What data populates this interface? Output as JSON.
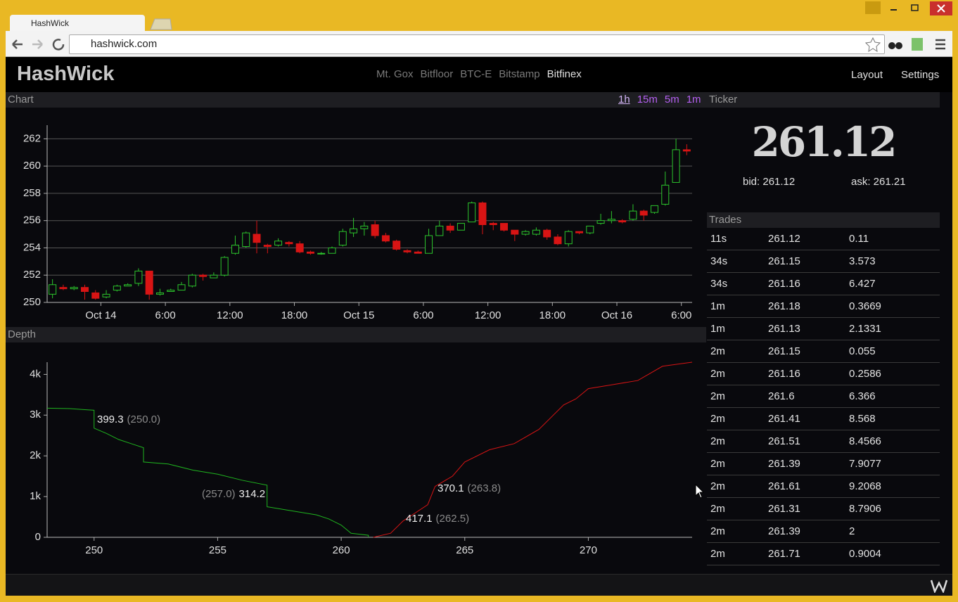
{
  "browser": {
    "tab_title": "HashWick",
    "url": "hashwick.com"
  },
  "header": {
    "logo": "HashWick",
    "exchanges": [
      "Mt. Gox",
      "Bitfloor",
      "BTC-E",
      "Bitstamp",
      "Bitfinex"
    ],
    "nav": [
      "Layout",
      "Settings"
    ]
  },
  "chart_panel": {
    "title": "Chart",
    "intervals": [
      "1h",
      "15m",
      "5m",
      "1m"
    ]
  },
  "depth_panel": {
    "title": "Depth"
  },
  "chart_data": [
    {
      "type": "candlestick",
      "x": [
        -4.5,
        -3.5,
        -2.5,
        -1.5,
        -0.5,
        0.5,
        1.5,
        2.5,
        3.5,
        4.5,
        5.5,
        6.5,
        7.5,
        8.5,
        9.5,
        10.5,
        11.5,
        12.5,
        13.5,
        14.5,
        15.5,
        16.5,
        17.5,
        18.5,
        19.5,
        20.5,
        21.5,
        22.5,
        23.5,
        24.5,
        25.5,
        26.5,
        27.5,
        28.5,
        29.5,
        30.5,
        31.5,
        32.5,
        33.5,
        34.5,
        35.5,
        36.5,
        37.5,
        38.5,
        39.5,
        40.5,
        41.5,
        42.5,
        43.5,
        44.5,
        45.5,
        46.5,
        47.5,
        48.5,
        49.5,
        50.5,
        51.5,
        52.5,
        53.5,
        54.5
      ],
      "open": [
        250.6,
        251.1,
        251.0,
        251.1,
        250.7,
        250.4,
        250.9,
        251.2,
        251.4,
        252.3,
        250.6,
        250.8,
        250.9,
        251.2,
        252.0,
        251.8,
        252.0,
        253.6,
        254.1,
        255.0,
        254.2,
        254.2,
        254.4,
        254.3,
        253.7,
        253.6,
        253.6,
        254.2,
        255.1,
        255.4,
        255.7,
        254.9,
        254.5,
        253.8,
        253.7,
        253.6,
        254.9,
        255.6,
        255.3,
        255.9,
        257.3,
        255.8,
        255.8,
        255.3,
        255.0,
        255.0,
        255.3,
        254.8,
        254.3,
        255.2,
        255.1,
        255.8,
        256.0,
        256.0,
        256.1,
        256.7,
        256.6,
        257.2,
        258.8,
        261.2
      ],
      "high": [
        251.7,
        251.3,
        251.2,
        251.3,
        250.9,
        250.9,
        251.3,
        251.4,
        252.5,
        252.3,
        251.0,
        251.0,
        251.5,
        252.1,
        252.1,
        252.2,
        253.4,
        254.9,
        255.2,
        256.0,
        254.3,
        254.7,
        254.5,
        254.5,
        253.8,
        253.7,
        254.1,
        255.4,
        256.2,
        255.9,
        256.0,
        255.1,
        254.6,
        253.9,
        253.8,
        255.4,
        256.0,
        255.8,
        255.8,
        257.4,
        257.4,
        255.9,
        255.8,
        255.3,
        255.3,
        255.5,
        255.4,
        255.0,
        255.3,
        255.2,
        255.6,
        256.5,
        256.7,
        256.1,
        257.2,
        256.8,
        257.1,
        259.6,
        262.0,
        261.6
      ],
      "low": [
        250.3,
        250.9,
        250.9,
        250.2,
        250.2,
        250.3,
        250.8,
        251.2,
        251.2,
        250.2,
        250.5,
        250.8,
        250.9,
        251.1,
        251.6,
        251.8,
        251.9,
        253.5,
        254.0,
        253.6,
        253.6,
        254.1,
        254.1,
        253.6,
        253.5,
        253.5,
        253.6,
        254.1,
        254.8,
        254.9,
        254.7,
        254.4,
        253.8,
        253.6,
        253.6,
        253.6,
        254.9,
        255.1,
        255.3,
        255.9,
        255.0,
        255.3,
        255.2,
        254.5,
        254.9,
        254.9,
        254.6,
        254.2,
        254.1,
        255.0,
        255.0,
        255.7,
        255.8,
        255.8,
        256.0,
        256.0,
        256.5,
        257.1,
        258.8,
        260.8
      ],
      "close": [
        251.3,
        251.0,
        251.1,
        250.8,
        250.3,
        250.6,
        251.2,
        251.3,
        252.3,
        250.6,
        250.7,
        250.9,
        251.3,
        252.0,
        251.9,
        252.0,
        253.3,
        254.2,
        255.1,
        254.4,
        254.1,
        254.5,
        254.3,
        253.7,
        253.6,
        253.6,
        254.0,
        255.2,
        255.4,
        255.6,
        254.9,
        254.5,
        253.9,
        253.7,
        253.6,
        254.9,
        255.6,
        255.3,
        255.8,
        257.3,
        255.7,
        255.7,
        255.3,
        255.0,
        255.2,
        255.3,
        254.8,
        254.3,
        255.2,
        255.1,
        255.6,
        256.0,
        256.1,
        255.9,
        256.7,
        256.4,
        257.1,
        258.6,
        261.2,
        261.1
      ],
      "up_color": "#2cc52c",
      "down_color": "#d81414",
      "xlim": [
        -5,
        55
      ],
      "xticks": [
        {
          "value": 0,
          "label": "Oct 14"
        },
        {
          "value": 6,
          "label": "6:00"
        },
        {
          "value": 12,
          "label": "12:00"
        },
        {
          "value": 18,
          "label": "18:00"
        },
        {
          "value": 24,
          "label": "Oct 15"
        },
        {
          "value": 30,
          "label": "6:00"
        },
        {
          "value": 36,
          "label": "12:00"
        },
        {
          "value": 42,
          "label": "18:00"
        },
        {
          "value": 48,
          "label": "Oct 16"
        },
        {
          "value": 54,
          "label": "6:00"
        }
      ],
      "ylim": [
        250,
        263
      ],
      "yticks": [
        250,
        252,
        254,
        256,
        258,
        260,
        262
      ],
      "grid": true
    },
    {
      "type": "line",
      "series": [
        {
          "color": "#1fb51f",
          "x": [
            248.1,
            249.0,
            250.0,
            250.0,
            250.5,
            251.0,
            251.5,
            252.0,
            252.0,
            253.0,
            254.0,
            255.0,
            256.0,
            257.0,
            257.0,
            258.0,
            259.0,
            259.5,
            260.0,
            260.4,
            261.1,
            261.1
          ],
          "values": [
            3170,
            3160,
            3120,
            2680,
            2550,
            2400,
            2300,
            2200,
            1850,
            1800,
            1650,
            1550,
            1400,
            1280,
            750,
            650,
            550,
            450,
            300,
            100,
            50,
            0
          ]
        },
        {
          "color": "#d81414",
          "x": [
            261.3,
            262.0,
            262.5,
            263.0,
            263.5,
            263.8,
            264.5,
            265.0,
            266.0,
            267.0,
            268.0,
            268.5,
            269.0,
            269.5,
            270.0,
            271.0,
            272.0,
            273.0,
            274.2
          ],
          "values": [
            0,
            100,
            400,
            600,
            800,
            1250,
            1500,
            1850,
            2150,
            2300,
            2650,
            2950,
            3250,
            3400,
            3650,
            3750,
            3850,
            4200,
            4300
          ]
        }
      ],
      "xlim": [
        248.1,
        274.2
      ],
      "xticks": [
        250,
        255,
        260,
        265,
        270
      ],
      "ylim": [
        0,
        4300
      ],
      "yticks": [
        0,
        {
          "value": 1000,
          "label": "1k"
        },
        {
          "value": 2000,
          "label": "2k"
        },
        {
          "value": 3000,
          "label": "3k"
        },
        {
          "value": 4000,
          "label": "4k"
        }
      ],
      "grid": false,
      "annotations": [
        {
          "amount": "399.3",
          "price": "(250.0)"
        },
        {
          "price": "(257.0)",
          "amount": "314.2"
        },
        {
          "amount": "370.1",
          "price": "(263.8)"
        },
        {
          "amount": "417.1",
          "price": "(262.5)"
        }
      ]
    }
  ],
  "ticker": {
    "title": "Ticker",
    "price": "261.12",
    "bid": "bid: 261.12",
    "ask": "ask: 261.21"
  },
  "trades": {
    "title": "Trades",
    "rows": [
      [
        "11s",
        "261.12",
        "0.11"
      ],
      [
        "34s",
        "261.15",
        "3.573"
      ],
      [
        "34s",
        "261.16",
        "6.427"
      ],
      [
        "1m",
        "261.18",
        "0.3669"
      ],
      [
        "1m",
        "261.13",
        "2.1331"
      ],
      [
        "2m",
        "261.15",
        "0.055"
      ],
      [
        "2m",
        "261.16",
        "0.2586"
      ],
      [
        "2m",
        "261.6",
        "6.366"
      ],
      [
        "2m",
        "261.41",
        "8.568"
      ],
      [
        "2m",
        "261.51",
        "8.4566"
      ],
      [
        "2m",
        "261.39",
        "7.9077"
      ],
      [
        "2m",
        "261.61",
        "9.2068"
      ],
      [
        "2m",
        "261.31",
        "8.7906"
      ],
      [
        "2m",
        "261.39",
        "2"
      ],
      [
        "2m",
        "261.71",
        "0.9004"
      ]
    ]
  }
}
